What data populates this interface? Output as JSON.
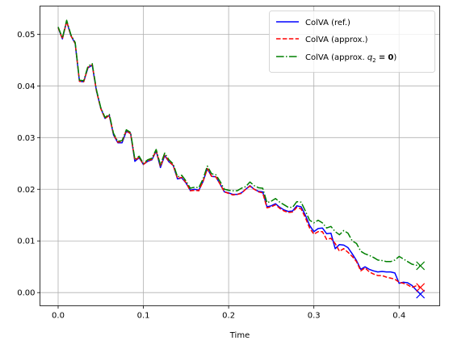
{
  "chart_data": {
    "type": "line",
    "xlabel": "Time",
    "ylabel": "",
    "xlim": [
      -0.0213,
      0.4476
    ],
    "ylim": [
      -0.00255,
      0.05545
    ],
    "xticks": [
      0.0,
      0.1,
      0.2,
      0.3,
      0.4
    ],
    "xtick_labels": [
      "0.0",
      "0.1",
      "0.2",
      "0.3",
      "0.4"
    ],
    "yticks": [
      0.0,
      0.01,
      0.02,
      0.03,
      0.04,
      0.05
    ],
    "ytick_labels": [
      "0.00",
      "0.01",
      "0.02",
      "0.03",
      "0.04",
      "0.05"
    ],
    "grid": true,
    "legend_position": "top-right",
    "x": [
      0.0,
      0.005,
      0.01,
      0.015,
      0.02,
      0.025,
      0.03,
      0.035,
      0.04,
      0.045,
      0.05,
      0.055,
      0.06,
      0.065,
      0.07,
      0.075,
      0.08,
      0.085,
      0.09,
      0.095,
      0.1,
      0.105,
      0.11,
      0.115,
      0.12,
      0.125,
      0.13,
      0.135,
      0.14,
      0.145,
      0.15,
      0.155,
      0.16,
      0.165,
      0.17,
      0.175,
      0.18,
      0.185,
      0.19,
      0.195,
      0.2,
      0.205,
      0.21,
      0.215,
      0.22,
      0.225,
      0.23,
      0.235,
      0.24,
      0.245,
      0.25,
      0.255,
      0.26,
      0.265,
      0.27,
      0.275,
      0.28,
      0.285,
      0.29,
      0.295,
      0.3,
      0.305,
      0.31,
      0.315,
      0.32,
      0.325,
      0.33,
      0.335,
      0.34,
      0.345,
      0.35,
      0.355,
      0.36,
      0.365,
      0.37,
      0.375,
      0.38,
      0.385,
      0.39,
      0.395,
      0.4,
      0.405,
      0.41,
      0.415,
      0.42,
      0.425
    ],
    "series": [
      {
        "name": "ColVA (ref.)",
        "color": "#0000ff",
        "dash": "solid",
        "end_marker": "x",
        "values": [
          0.0513,
          0.0491,
          0.0525,
          0.0497,
          0.0482,
          0.0409,
          0.0408,
          0.0435,
          0.044,
          0.039,
          0.0357,
          0.0337,
          0.0343,
          0.0305,
          0.029,
          0.029,
          0.0312,
          0.0308,
          0.0254,
          0.0261,
          0.0248,
          0.0254,
          0.0257,
          0.0274,
          0.0242,
          0.0265,
          0.0253,
          0.0246,
          0.022,
          0.0222,
          0.0212,
          0.0198,
          0.02,
          0.0198,
          0.0215,
          0.024,
          0.0225,
          0.0224,
          0.021,
          0.0195,
          0.0193,
          0.019,
          0.019,
          0.0193,
          0.02,
          0.0207,
          0.02,
          0.0196,
          0.0195,
          0.0166,
          0.0168,
          0.0172,
          0.0165,
          0.016,
          0.0157,
          0.0158,
          0.0168,
          0.0166,
          0.015,
          0.013,
          0.0118,
          0.0124,
          0.0125,
          0.0114,
          0.0115,
          0.0085,
          0.0093,
          0.0092,
          0.0087,
          0.0075,
          0.0062,
          0.0045,
          0.005,
          0.0045,
          0.0042,
          0.004,
          0.0041,
          0.004,
          0.004,
          0.0038,
          0.0018,
          0.002,
          0.0019,
          0.0014,
          0.0005,
          -0.0003
        ]
      },
      {
        "name": "ColVA (approx.)",
        "color": "#ff0000",
        "dash": "dashed",
        "end_marker": "x",
        "values": [
          0.0513,
          0.0491,
          0.0525,
          0.0497,
          0.0482,
          0.0409,
          0.0408,
          0.0436,
          0.0441,
          0.039,
          0.0356,
          0.0337,
          0.0343,
          0.0306,
          0.0291,
          0.0292,
          0.0314,
          0.0307,
          0.0256,
          0.0262,
          0.0248,
          0.0255,
          0.0258,
          0.0275,
          0.0244,
          0.0266,
          0.0254,
          0.0246,
          0.0221,
          0.0223,
          0.0213,
          0.0197,
          0.0198,
          0.0197,
          0.0215,
          0.024,
          0.0225,
          0.0224,
          0.021,
          0.0195,
          0.0192,
          0.0189,
          0.019,
          0.0192,
          0.02,
          0.0206,
          0.02,
          0.0195,
          0.0193,
          0.0164,
          0.0166,
          0.017,
          0.0163,
          0.0158,
          0.0155,
          0.0156,
          0.0165,
          0.0162,
          0.0145,
          0.0125,
          0.0113,
          0.0118,
          0.0118,
          0.0103,
          0.0105,
          0.0095,
          0.008,
          0.0085,
          0.0078,
          0.007,
          0.006,
          0.0042,
          0.0048,
          0.004,
          0.0036,
          0.0033,
          0.0033,
          0.003,
          0.0028,
          0.0026,
          0.002,
          0.0018,
          0.0015,
          0.001,
          0.0013,
          0.001
        ]
      },
      {
        "name": "ColVA (approx. q2 ≡ 0)",
        "color": "#008000",
        "dash": "dashdot",
        "end_marker": "x",
        "values": [
          0.0514,
          0.0493,
          0.0527,
          0.0499,
          0.0484,
          0.0411,
          0.041,
          0.0438,
          0.0443,
          0.0392,
          0.0358,
          0.0339,
          0.0345,
          0.0308,
          0.0293,
          0.0294,
          0.0315,
          0.031,
          0.0258,
          0.0264,
          0.025,
          0.0257,
          0.026,
          0.0277,
          0.0247,
          0.027,
          0.0257,
          0.0249,
          0.0224,
          0.0227,
          0.0216,
          0.0202,
          0.0204,
          0.0203,
          0.022,
          0.0245,
          0.023,
          0.0228,
          0.0215,
          0.02,
          0.0198,
          0.0197,
          0.0197,
          0.0202,
          0.0205,
          0.0214,
          0.0207,
          0.0203,
          0.0202,
          0.0174,
          0.0177,
          0.0182,
          0.0175,
          0.017,
          0.0165,
          0.0165,
          0.0176,
          0.0175,
          0.0158,
          0.014,
          0.0135,
          0.014,
          0.0135,
          0.0125,
          0.0128,
          0.0118,
          0.0112,
          0.012,
          0.0115,
          0.01,
          0.0095,
          0.008,
          0.0075,
          0.0072,
          0.0068,
          0.0063,
          0.0062,
          0.006,
          0.006,
          0.0063,
          0.007,
          0.0065,
          0.006,
          0.0055,
          0.0053,
          0.0052
        ]
      }
    ]
  },
  "legend": {
    "items": [
      {
        "label": "ColVA (ref.)",
        "color": "#0000ff",
        "dash": "solid"
      },
      {
        "label": "ColVA (approx.)",
        "color": "#ff0000",
        "dash": "dashed"
      },
      {
        "label_prefix": "ColVA (approx. ",
        "q_symbol": "q",
        "q_sub": "2",
        "equiv": " ≡ ",
        "zero": "0",
        "suffix": ")",
        "color": "#008000",
        "dash": "dashdot"
      }
    ]
  }
}
